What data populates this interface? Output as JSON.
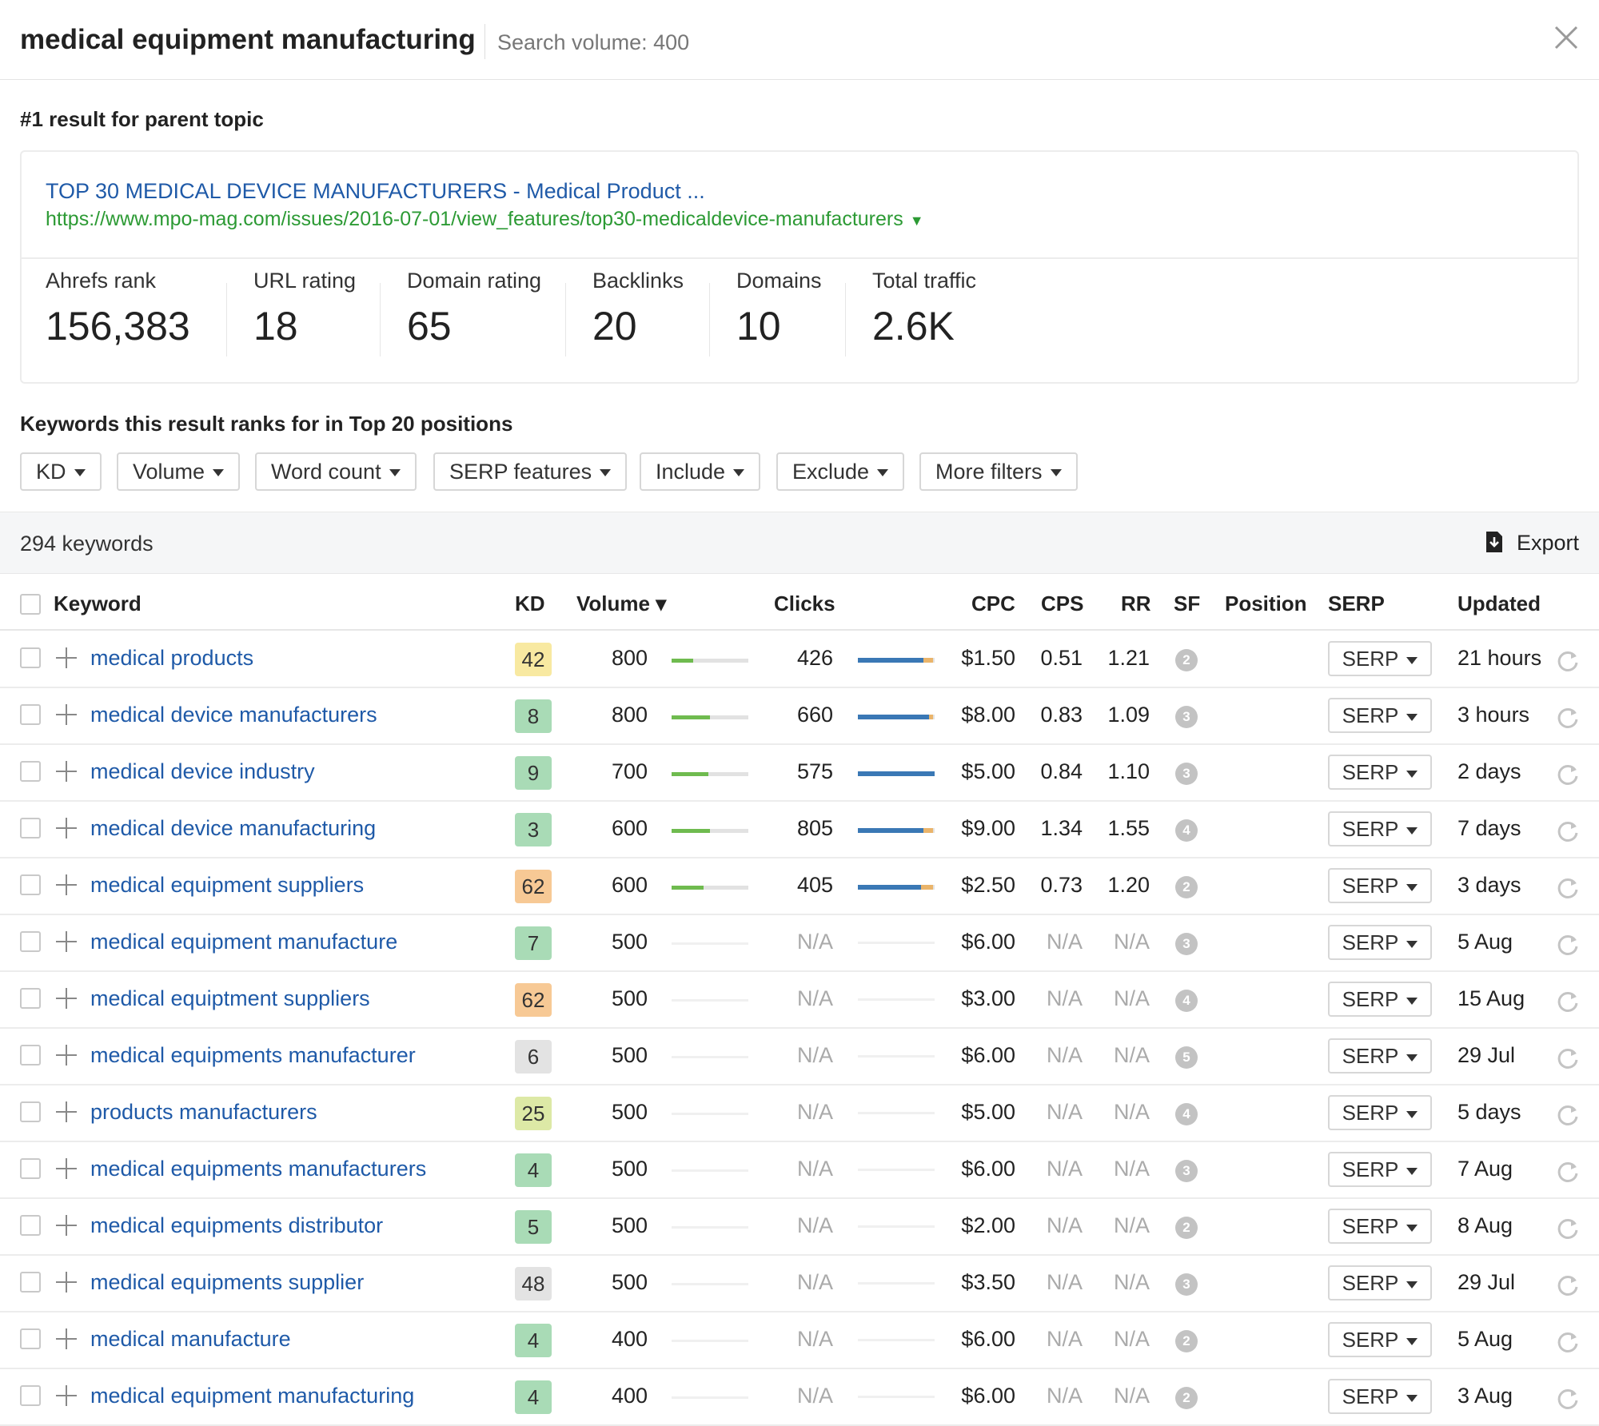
{
  "header": {
    "title": "medical equipment manufacturing",
    "search_volume": "Search volume: 400",
    "close_icon": "close-icon"
  },
  "parent_topic": {
    "section_title": "#1 result for parent topic",
    "result_title": "TOP 30 MEDICAL DEVICE MANUFACTURERS - Medical Product ...",
    "result_url": "https://www.mpo-mag.com/issues/2016-07-01/view_features/top30-medicaldevice-manufacturers",
    "url_caret": "▼",
    "metrics": [
      {
        "label": "Ahrefs rank",
        "value": "156,383"
      },
      {
        "label": "URL rating",
        "value": "18"
      },
      {
        "label": "Domain rating",
        "value": "65"
      },
      {
        "label": "Backlinks",
        "value": "20"
      },
      {
        "label": "Domains",
        "value": "10"
      },
      {
        "label": "Total traffic",
        "value": "2.6K"
      }
    ]
  },
  "keywords_section": {
    "title": "Keywords this result ranks for in Top 20 positions",
    "filters": [
      "KD",
      "Volume",
      "Word count",
      "SERP features",
      "Include",
      "Exclude",
      "More filters"
    ],
    "count": "294 keywords",
    "export_label": "Export",
    "export_icon": "download-icon"
  },
  "table": {
    "columns": {
      "keyword": "Keyword",
      "kd": "KD",
      "volume": "Volume ▾",
      "clicks": "Clicks",
      "cpc": "CPC",
      "cps": "CPS",
      "rr": "RR",
      "sf": "SF",
      "position": "Position",
      "serp": "SERP",
      "updated": "Updated"
    },
    "serp_button": "SERP",
    "colors": {
      "kd_green": "#a9dbb6",
      "kd_yellowgreen": "#dde9a6",
      "kd_yellow": "#f8e9a1",
      "kd_orange": "#f7c995",
      "kd_grey": "#e3e3e3",
      "volume_bar": "#6fbb4f",
      "clicks_paid": "#3a78b5",
      "clicks_organic_extra": "#eab46a"
    },
    "rows": [
      {
        "keyword": "medical products",
        "kd": "42",
        "kd_color": "kd_yellow",
        "volume": "800",
        "volume_level": 0.28,
        "clicks": "426",
        "clicks_blue": 0.85,
        "clicks_orange": 0.12,
        "cpc": "$1.50",
        "cps": "0.51",
        "rr": "1.21",
        "sf": "2",
        "updated": "21 hours"
      },
      {
        "keyword": "medical device manufacturers",
        "kd": "8",
        "kd_color": "kd_green",
        "volume": "800",
        "volume_level": 0.5,
        "clicks": "660",
        "clicks_blue": 0.93,
        "clicks_orange": 0.05,
        "cpc": "$8.00",
        "cps": "0.83",
        "rr": "1.09",
        "sf": "3",
        "updated": "3 hours"
      },
      {
        "keyword": "medical device industry",
        "kd": "9",
        "kd_color": "kd_green",
        "volume": "700",
        "volume_level": 0.48,
        "clicks": "575",
        "clicks_blue": 1.0,
        "clicks_orange": 0,
        "cpc": "$5.00",
        "cps": "0.84",
        "rr": "1.10",
        "sf": "3",
        "updated": "2 days"
      },
      {
        "keyword": "medical device manufacturing",
        "kd": "3",
        "kd_color": "kd_green",
        "volume": "600",
        "volume_level": 0.5,
        "clicks": "805",
        "clicks_blue": 0.85,
        "clicks_orange": 0.12,
        "cpc": "$9.00",
        "cps": "1.34",
        "rr": "1.55",
        "sf": "4",
        "updated": "7 days"
      },
      {
        "keyword": "medical equipment suppliers",
        "kd": "62",
        "kd_color": "kd_orange",
        "volume": "600",
        "volume_level": 0.42,
        "clicks": "405",
        "clicks_blue": 0.82,
        "clicks_orange": 0.16,
        "cpc": "$2.50",
        "cps": "0.73",
        "rr": "1.20",
        "sf": "2",
        "updated": "3 days"
      },
      {
        "keyword": "medical equipment manufacture",
        "kd": "7",
        "kd_color": "kd_green",
        "volume": "500",
        "volume_level": 0,
        "clicks": "N/A",
        "clicks_blue": 0,
        "clicks_orange": 0,
        "cpc": "$6.00",
        "cps": "N/A",
        "rr": "N/A",
        "sf": "3",
        "updated": "5 Aug"
      },
      {
        "keyword": "medical equiptment suppliers",
        "kd": "62",
        "kd_color": "kd_orange",
        "volume": "500",
        "volume_level": 0,
        "clicks": "N/A",
        "clicks_blue": 0,
        "clicks_orange": 0,
        "cpc": "$3.00",
        "cps": "N/A",
        "rr": "N/A",
        "sf": "4",
        "updated": "15 Aug"
      },
      {
        "keyword": "medical equipments manufacturer",
        "kd": "6",
        "kd_color": "kd_grey",
        "volume": "500",
        "volume_level": 0,
        "clicks": "N/A",
        "clicks_blue": 0,
        "clicks_orange": 0,
        "cpc": "$6.00",
        "cps": "N/A",
        "rr": "N/A",
        "sf": "5",
        "updated": "29 Jul"
      },
      {
        "keyword": "products manufacturers",
        "kd": "25",
        "kd_color": "kd_yellowgreen",
        "volume": "500",
        "volume_level": 0,
        "clicks": "N/A",
        "clicks_blue": 0,
        "clicks_orange": 0,
        "cpc": "$5.00",
        "cps": "N/A",
        "rr": "N/A",
        "sf": "4",
        "updated": "5 days"
      },
      {
        "keyword": "medical equipments manufacturers",
        "kd": "4",
        "kd_color": "kd_green",
        "volume": "500",
        "volume_level": 0,
        "clicks": "N/A",
        "clicks_blue": 0,
        "clicks_orange": 0,
        "cpc": "$6.00",
        "cps": "N/A",
        "rr": "N/A",
        "sf": "3",
        "updated": "7 Aug"
      },
      {
        "keyword": "medical equipments distributor",
        "kd": "5",
        "kd_color": "kd_green",
        "volume": "500",
        "volume_level": 0,
        "clicks": "N/A",
        "clicks_blue": 0,
        "clicks_orange": 0,
        "cpc": "$2.00",
        "cps": "N/A",
        "rr": "N/A",
        "sf": "2",
        "updated": "8 Aug"
      },
      {
        "keyword": "medical equipments supplier",
        "kd": "48",
        "kd_color": "kd_grey",
        "volume": "500",
        "volume_level": 0,
        "clicks": "N/A",
        "clicks_blue": 0,
        "clicks_orange": 0,
        "cpc": "$3.50",
        "cps": "N/A",
        "rr": "N/A",
        "sf": "3",
        "updated": "29 Jul"
      },
      {
        "keyword": "medical manufacture",
        "kd": "4",
        "kd_color": "kd_green",
        "volume": "400",
        "volume_level": 0,
        "clicks": "N/A",
        "clicks_blue": 0,
        "clicks_orange": 0,
        "cpc": "$6.00",
        "cps": "N/A",
        "rr": "N/A",
        "sf": "2",
        "updated": "5 Aug"
      },
      {
        "keyword": "medical equipment manufacturing",
        "kd": "4",
        "kd_color": "kd_green",
        "volume": "400",
        "volume_level": 0,
        "clicks": "N/A",
        "clicks_blue": 0,
        "clicks_orange": 0,
        "cpc": "$6.00",
        "cps": "N/A",
        "rr": "N/A",
        "sf": "2",
        "updated": "3 Aug"
      }
    ]
  }
}
